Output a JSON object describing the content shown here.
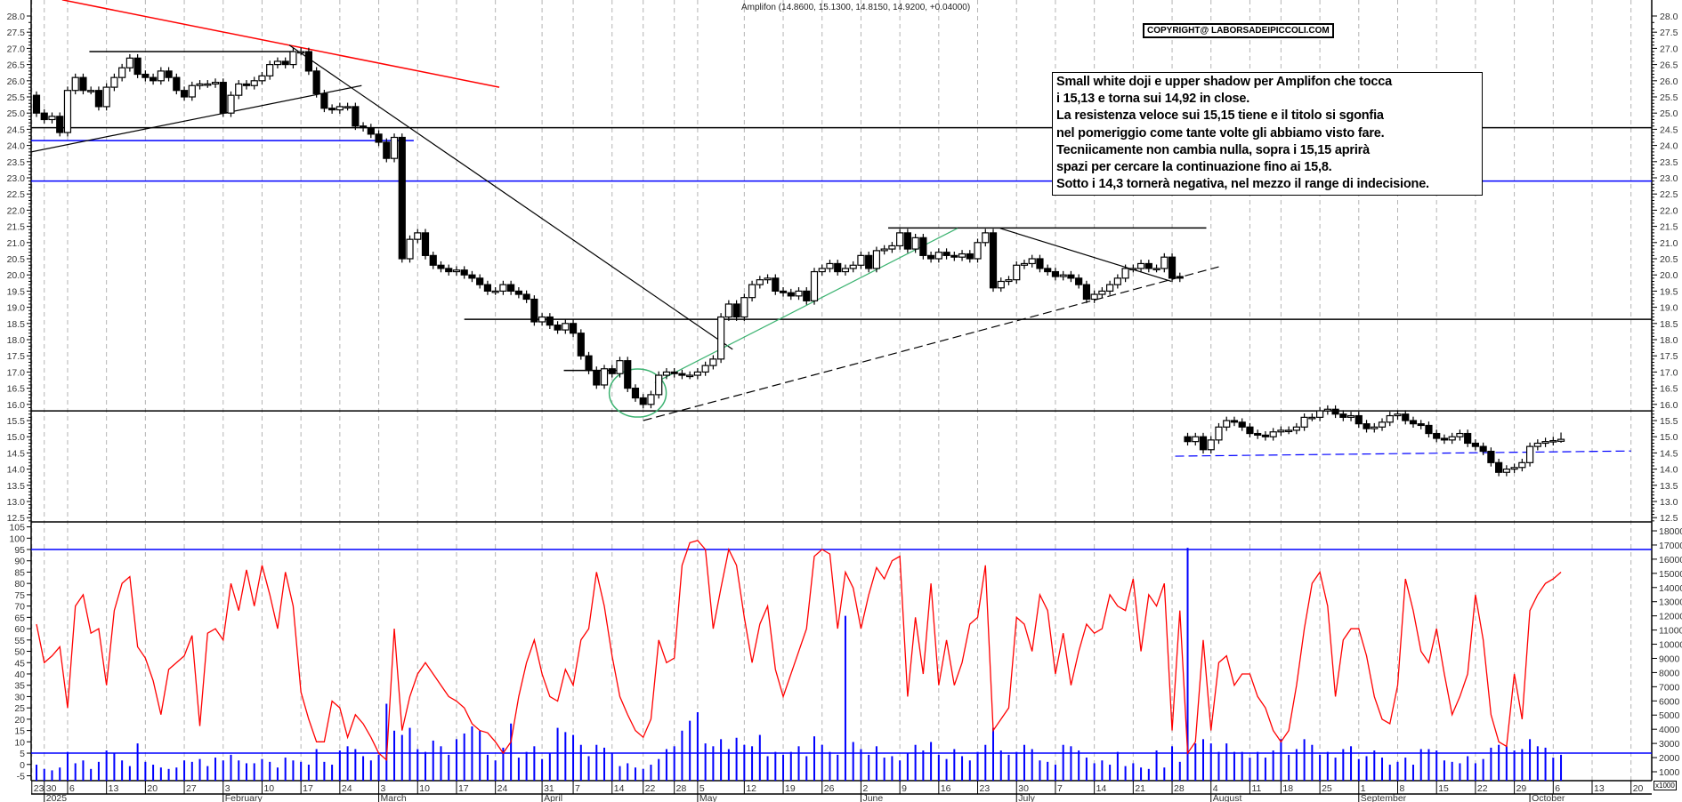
{
  "header": {
    "title": "Amplifon (14.8600, 15.1300, 14.8150, 14.9200, +0.04000)",
    "copyright": "COPYRIGHT@ LABORSADEIPICCOLI.COM"
  },
  "note": {
    "lines": [
      "Small white doji e upper shadow per Amplifon che tocca",
      "i 15,13 e torna sui 14,92 in close.",
      "La resistenza veloce sui 15,15 tiene e il titolo si sgonfia",
      "nel pomeriggio come tante volte gli abbiamo visto fare.",
      "Tecniicamente non cambia nulla, sopra i 15,15 aprirà",
      "spazi per cercare la continuazione fino ai 15,8.",
      "Sotto i 14,3 tornerà negativa, nel mezzo il range di indecisione."
    ]
  },
  "colors": {
    "up": "#ffffff",
    "down": "#000000",
    "oscillator": "#ff0000",
    "volume": "#0000ff",
    "grid": "#b4b4b4",
    "trend_red": "#ff0000",
    "trend_green": "#3cb371",
    "level_blue": "#0000ff"
  },
  "chart_data": {
    "type": "candlestick",
    "title": "Amplifon",
    "last_bar": {
      "open": 14.86,
      "high": 15.13,
      "low": 14.815,
      "close": 14.92,
      "change": 0.04
    },
    "price_axis": {
      "min": 12.5,
      "max": 28.0,
      "step": 0.5,
      "labels": [
        "28.0",
        "27.5",
        "27.0",
        "26.5",
        "26.0",
        "25.5",
        "25.0",
        "24.5",
        "24.0",
        "23.5",
        "23.0",
        "22.5",
        "22.0",
        "21.5",
        "21.0",
        "20.5",
        "20.0",
        "19.5",
        "19.0",
        "18.5",
        "18.0",
        "17.5",
        "17.0",
        "16.5",
        "16.0",
        "15.5",
        "15.0",
        "14.5",
        "14.0",
        "13.5",
        "13.0",
        "12.5"
      ]
    },
    "oscillator_axis": {
      "min": -5,
      "max": 105,
      "labels": [
        "105",
        "100",
        "95",
        "90",
        "85",
        "80",
        "75",
        "70",
        "65",
        "60",
        "55",
        "50",
        "45",
        "40",
        "35",
        "30",
        "25",
        "20",
        "15",
        "10",
        "5",
        "0",
        "-5"
      ]
    },
    "volume_axis": {
      "min": 1000,
      "max": 18000,
      "unit_label": "x1000",
      "labels": [
        "18000",
        "17000",
        "16000",
        "15000",
        "14000",
        "13000",
        "12000",
        "11000",
        "10000",
        "9000",
        "8000",
        "7000",
        "6000",
        "5000",
        "4000",
        "3000",
        "2000",
        "1000"
      ]
    },
    "close": [
      25.0,
      24.8,
      24.9,
      24.4,
      25.7,
      26.1,
      25.7,
      25.7,
      25.2,
      25.8,
      26.1,
      26.4,
      26.7,
      26.2,
      26.1,
      26.0,
      26.3,
      26.1,
      25.7,
      25.5,
      25.85,
      25.9,
      25.9,
      25.95,
      25.0,
      25.55,
      25.9,
      25.85,
      26.0,
      26.15,
      26.5,
      26.6,
      26.5,
      26.9,
      26.9,
      26.3,
      25.6,
      25.15,
      25.1,
      25.2,
      25.2,
      24.6,
      24.55,
      24.35,
      24.1,
      23.6,
      24.25,
      20.5,
      21.1,
      21.3,
      20.6,
      20.3,
      20.2,
      20.1,
      20.15,
      20.0,
      19.9,
      19.7,
      19.5,
      19.5,
      19.7,
      19.5,
      19.4,
      19.25,
      18.55,
      18.7,
      18.45,
      18.3,
      18.5,
      18.2,
      17.5,
      17.05,
      16.6,
      17.1,
      16.95,
      17.35,
      16.5,
      16.2,
      16.0,
      16.3,
      16.9,
      17.0,
      16.95,
      16.9,
      16.9,
      17.0,
      17.2,
      17.4,
      18.7,
      19.1,
      18.7,
      19.3,
      19.7,
      19.85,
      19.9,
      19.5,
      19.45,
      19.35,
      19.5,
      19.2,
      20.1,
      20.2,
      20.35,
      20.1,
      20.2,
      20.3,
      20.6,
      20.2,
      20.75,
      20.8,
      20.9,
      21.3,
      20.8,
      21.15,
      20.6,
      20.5,
      20.7,
      20.6,
      20.55,
      20.65,
      20.5,
      21.0,
      21.3,
      19.6,
      19.8,
      19.85,
      20.3,
      20.35,
      20.5,
      20.2,
      20.1,
      19.95,
      20.0,
      19.9,
      19.7,
      19.25,
      19.4,
      19.5,
      19.7,
      19.9,
      20.2,
      20.2,
      20.35,
      20.2,
      20.2,
      20.55,
      19.9,
      19.9,
      14.85,
      15.0,
      14.6,
      14.9,
      15.3,
      15.5,
      15.45,
      15.3,
      15.1,
      15.05,
      15.0,
      15.15,
      15.2,
      15.2,
      15.3,
      15.6,
      15.6,
      15.8,
      15.85,
      15.7,
      15.6,
      15.65,
      15.4,
      15.25,
      15.3,
      15.45,
      15.65,
      15.7,
      15.5,
      15.4,
      15.35,
      15.1,
      14.95,
      14.9,
      15.0,
      15.1,
      14.8,
      14.7,
      14.55,
      14.2,
      13.9,
      14.0,
      14.05,
      14.2,
      14.7,
      14.8,
      14.85,
      14.88,
      14.92
    ],
    "open_overrides": {
      "0": 25.55,
      "147": 19.95,
      "148": 15.0,
      "196": 14.86
    },
    "oscillator": [
      62,
      45,
      48,
      52,
      25,
      70,
      75,
      58,
      60,
      35,
      68,
      80,
      83,
      52,
      47,
      37,
      22,
      42,
      45,
      48,
      57,
      17,
      58,
      60,
      55,
      80,
      68,
      86,
      70,
      88,
      75,
      60,
      85,
      70,
      32,
      20,
      10,
      10,
      28,
      25,
      12,
      22,
      18,
      12,
      5,
      2,
      60,
      15,
      30,
      40,
      45,
      40,
      35,
      30,
      28,
      25,
      18,
      15,
      14,
      10,
      5,
      10,
      30,
      45,
      55,
      40,
      30,
      28,
      42,
      35,
      55,
      60,
      85,
      70,
      48,
      30,
      22,
      15,
      12,
      20,
      55,
      45,
      47,
      88,
      98,
      99,
      95,
      60,
      78,
      95,
      88,
      65,
      45,
      62,
      70,
      42,
      30,
      40,
      50,
      60,
      92,
      95,
      93,
      60,
      85,
      78,
      60,
      75,
      87,
      82,
      90,
      92,
      30,
      65,
      40,
      80,
      35,
      55,
      35,
      45,
      62,
      65,
      88,
      15,
      20,
      25,
      65,
      62,
      50,
      75,
      68,
      40,
      58,
      35,
      50,
      62,
      58,
      60,
      75,
      70,
      68,
      82,
      50,
      75,
      70,
      80,
      15,
      68,
      5,
      10,
      55,
      15,
      45,
      48,
      35,
      40,
      40,
      30,
      25,
      15,
      10,
      15,
      35,
      60,
      80,
      85,
      70,
      30,
      55,
      60,
      60,
      48,
      30,
      20,
      18,
      35,
      82,
      68,
      50,
      45,
      60,
      40,
      22,
      30,
      40,
      75,
      55,
      22,
      10,
      8,
      40,
      20,
      68,
      75,
      80,
      82,
      85
    ],
    "volume_thousands": [
      1.5,
      1.2,
      1.1,
      1.3,
      2.4,
      1.6,
      1.8,
      1.2,
      1.7,
      2.5,
      2.3,
      1.8,
      1.4,
      3.0,
      1.7,
      1.5,
      1.3,
      1.2,
      1.3,
      1.8,
      1.7,
      1.9,
      1.4,
      2.0,
      1.8,
      2.2,
      1.8,
      1.6,
      1.6,
      1.9,
      1.7,
      1.3,
      2.0,
      1.8,
      1.7,
      1.5,
      2.6,
      1.7,
      1.5,
      2.5,
      2.8,
      2.6,
      2.1,
      1.8,
      2.2,
      5.8,
      3.9,
      3.6,
      4.1,
      2.6,
      2.4,
      3.2,
      2.8,
      2.2,
      3.3,
      3.7,
      4.2,
      3.9,
      2.2,
      1.8,
      2.7,
      4.4,
      2.0,
      2.4,
      2.8,
      1.9,
      2.3,
      4.1,
      3.8,
      3.6,
      2.9,
      2.1,
      2.9,
      2.7,
      2.3,
      1.4,
      1.6,
      1.3,
      1.2,
      1.5,
      1.9,
      2.6,
      2.8,
      3.9,
      4.6,
      5.2,
      3.0,
      2.8,
      3.3,
      2.6,
      3.4,
      2.9,
      2.8,
      3.6,
      2.1,
      2.4,
      2.2,
      2.4,
      2.8,
      2.1,
      3.5,
      2.9,
      2.4,
      2.2,
      12.0,
      3.1,
      2.6,
      2.2,
      2.8,
      2.0,
      2.1,
      1.8,
      2.3,
      2.9,
      2.5,
      3.1,
      2.2,
      1.9,
      2.6,
      2.1,
      1.8,
      2.4,
      2.9,
      4.1,
      2.5,
      2.2,
      2.4,
      2.9,
      2.6,
      1.8,
      1.7,
      1.5,
      2.9,
      2.8,
      2.5,
      2.0,
      1.6,
      1.8,
      1.5,
      2.4,
      1.4,
      1.6,
      1.3,
      1.2,
      2.5,
      1.3,
      2.8,
      1.7,
      16.8,
      3.0,
      3.3,
      3.0,
      2.4,
      3.0,
      2.4,
      2.4,
      2.0,
      2.4,
      2.0,
      2.5,
      3.3,
      2.2,
      2.6,
      3.3,
      2.9,
      2.2,
      2.4,
      2.0,
      2.6,
      2.8,
      1.9,
      2.1,
      2.5,
      2.0,
      1.5,
      1.7,
      2.0,
      1.5,
      2.6,
      2.6,
      2.5,
      1.8,
      1.7,
      1.6,
      2.1,
      1.6,
      1.9,
      2.7,
      2.9,
      2.8,
      2.5,
      2.6,
      3.3,
      2.8,
      2.7,
      2.0,
      2.2
    ],
    "date_ticks": [
      {
        "label": "23",
        "day": -0.6
      },
      {
        "label": "30",
        "day": 1
      },
      {
        "label": "6",
        "day": 4
      },
      {
        "label": "13",
        "day": 9
      },
      {
        "label": "20",
        "day": 14
      },
      {
        "label": "27",
        "day": 19
      },
      {
        "label": "3",
        "day": 24
      },
      {
        "label": "10",
        "day": 29
      },
      {
        "label": "17",
        "day": 34
      },
      {
        "label": "24",
        "day": 39
      },
      {
        "label": "3",
        "day": 44
      },
      {
        "label": "10",
        "day": 49
      },
      {
        "label": "17",
        "day": 54
      },
      {
        "label": "24",
        "day": 59
      },
      {
        "label": "31",
        "day": 65
      },
      {
        "label": "7",
        "day": 69
      },
      {
        "label": "14",
        "day": 74
      },
      {
        "label": "22",
        "day": 78
      },
      {
        "label": "28",
        "day": 82
      },
      {
        "label": "5",
        "day": 85
      },
      {
        "label": "12",
        "day": 91
      },
      {
        "label": "19",
        "day": 96
      },
      {
        "label": "26",
        "day": 101
      },
      {
        "label": "2",
        "day": 106
      },
      {
        "label": "9",
        "day": 111
      },
      {
        "label": "16",
        "day": 116
      },
      {
        "label": "23",
        "day": 121
      },
      {
        "label": "30",
        "day": 126
      },
      {
        "label": "7",
        "day": 131
      },
      {
        "label": "14",
        "day": 136
      },
      {
        "label": "21",
        "day": 141
      },
      {
        "label": "28",
        "day": 146
      },
      {
        "label": "4",
        "day": 151
      },
      {
        "label": "11",
        "day": 156
      },
      {
        "label": "18",
        "day": 160
      },
      {
        "label": "25",
        "day": 165
      },
      {
        "label": "1",
        "day": 170
      },
      {
        "label": "8",
        "day": 175
      },
      {
        "label": "15",
        "day": 180
      },
      {
        "label": "22",
        "day": 185
      },
      {
        "label": "29",
        "day": 190
      },
      {
        "label": "6",
        "day": 195
      },
      {
        "label": "13",
        "day": 200
      },
      {
        "label": "20",
        "day": 205
      }
    ],
    "month_labels": [
      {
        "label": "2025",
        "day": 1
      },
      {
        "label": "February",
        "day": 24
      },
      {
        "label": "March",
        "day": 44
      },
      {
        "label": "April",
        "day": 65
      },
      {
        "label": "May",
        "day": 85
      },
      {
        "label": "June",
        "day": 106
      },
      {
        "label": "July",
        "day": 126
      },
      {
        "label": "August",
        "day": 151
      },
      {
        "label": "September",
        "day": 170
      },
      {
        "label": "October",
        "day": 192
      }
    ],
    "levels": [
      {
        "price": 24.55,
        "from": -1,
        "to": 210,
        "color": "#000000"
      },
      {
        "price": 24.15,
        "from": -1,
        "to": 48.5,
        "color": "#0000ff"
      },
      {
        "price": 22.9,
        "from": -1,
        "to": 210,
        "color": "#0000ff"
      },
      {
        "price": 18.63,
        "from": 55,
        "to": 210,
        "color": "#000000"
      },
      {
        "price": 15.8,
        "from": -1,
        "to": 210,
        "color": "#000000"
      },
      {
        "price": 26.9,
        "from": 6.8,
        "to": 33,
        "color": "#000000"
      },
      {
        "price": 17.05,
        "from": 67.8,
        "to": 75,
        "color": "#000000"
      },
      {
        "price": 21.45,
        "from": 109.5,
        "to": 150.4,
        "color": "#000000"
      }
    ],
    "trendlines": [
      {
        "name": "red-resistance",
        "from": [
          3.3,
          28.5
        ],
        "to": [
          59.5,
          25.8
        ],
        "color": "#ff0000",
        "dash": false
      },
      {
        "name": "rising-support",
        "from": [
          -0.7,
          23.8
        ],
        "to": [
          41.8,
          25.85
        ],
        "color": "#000000",
        "dash": false
      },
      {
        "name": "falling-trend",
        "from": [
          32.5,
          27.1
        ],
        "to": [
          89.5,
          17.7
        ],
        "color": "#000000",
        "dash": false
      },
      {
        "name": "green-uptrend",
        "from": [
          79.5,
          16.67
        ],
        "to": [
          118.4,
          21.44
        ],
        "color": "#3cb371",
        "dash": false
      },
      {
        "name": "dashed-support",
        "from": [
          78,
          15.5
        ],
        "to": [
          152,
          20.25
        ],
        "color": "#000000",
        "dash": true
      },
      {
        "name": "triangle-top",
        "from": [
          123.9,
          21.44
        ],
        "to": [
          145.9,
          19.8
        ],
        "color": "#000000",
        "dash": false
      },
      {
        "name": "blue-dashed-support",
        "from": [
          146.4,
          14.4
        ],
        "to": [
          205,
          14.56
        ],
        "color": "#0000ff",
        "dash": true
      }
    ],
    "highlight_circle": {
      "day": 77.3,
      "price": 16.35
    },
    "oscillator_levels": [
      95,
      5
    ]
  }
}
